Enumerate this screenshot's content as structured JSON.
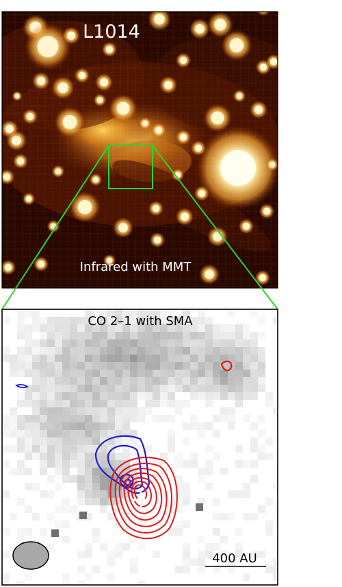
{
  "top_panel": {
    "title": "L1014",
    "caption": "Infrared with MMT",
    "colormap": {
      "dark": "#1a0500",
      "mid": "#b84a08",
      "bright": "#ffe070",
      "star": "#fff8d0"
    },
    "zoom_box_color": "#2bd42b"
  },
  "bottom_panel": {
    "title": "CO 2–1 with SMA",
    "scale_bar_label": "400 AU",
    "contour_colors": {
      "blue": "#1a1adc",
      "red": "#e01818"
    },
    "beam_fill": "#a8a8a8",
    "marker_color": "#ffffff"
  }
}
